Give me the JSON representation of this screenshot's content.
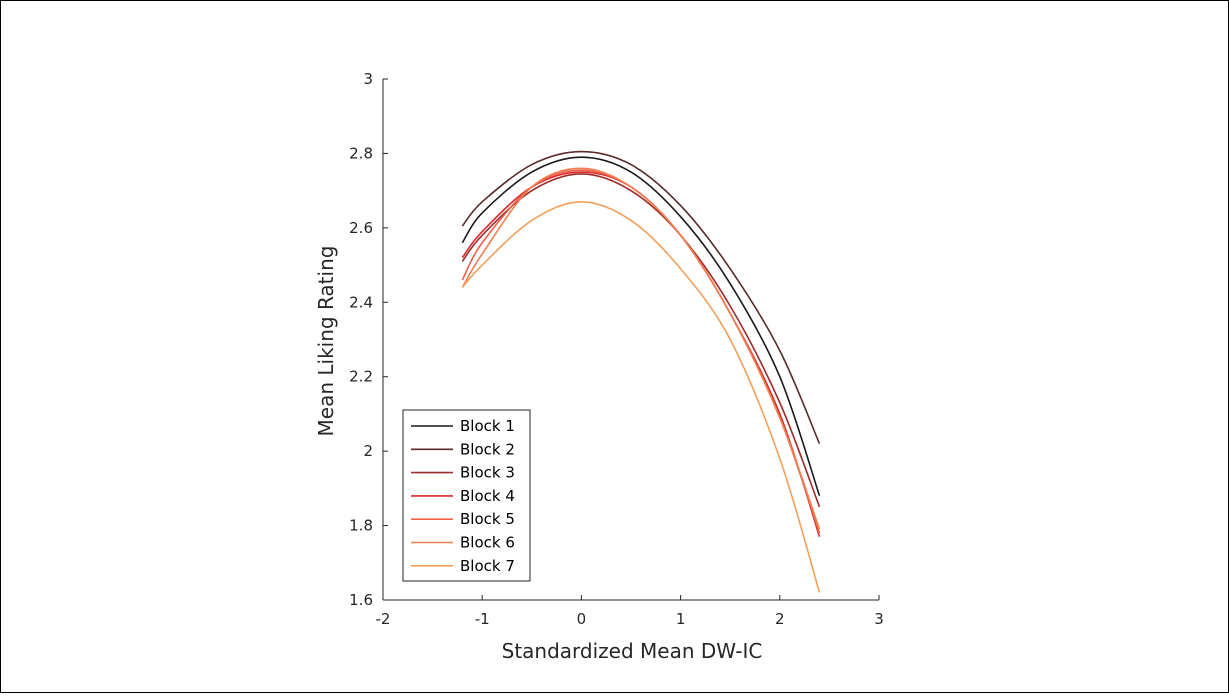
{
  "chart_data": {
    "type": "line",
    "xlabel": "Standardized Mean DW-IC",
    "ylabel": "Mean Liking Rating",
    "xlim": [
      -2,
      3
    ],
    "ylim": [
      1.6,
      3
    ],
    "xticks": [
      -2,
      -1,
      0,
      1,
      2,
      3
    ],
    "yticks": [
      1.6,
      1.8,
      2,
      2.2,
      2.4,
      2.6,
      2.8,
      3
    ],
    "xtick_labels": [
      "-2",
      "-1",
      "0",
      "1",
      "2",
      "3"
    ],
    "ytick_labels": [
      "1.6",
      "1.8",
      "2",
      "2.2",
      "2.4",
      "2.6",
      "2.8",
      "3"
    ],
    "grid": false,
    "legend_position": "bottom-left",
    "series": [
      {
        "name": "Block 1",
        "color": "#1a1a1a",
        "x": [
          -1.2,
          -1,
          -0.5,
          0,
          0.5,
          1,
          1.5,
          2,
          2.4
        ],
        "y": [
          2.56,
          2.64,
          2.75,
          2.79,
          2.75,
          2.63,
          2.45,
          2.2,
          1.88
        ]
      },
      {
        "name": "Block 2",
        "color": "#5a2a2a",
        "x": [
          -1.2,
          -1,
          -0.5,
          0,
          0.5,
          1,
          1.5,
          2,
          2.4
        ],
        "y": [
          2.605,
          2.67,
          2.77,
          2.805,
          2.77,
          2.66,
          2.49,
          2.27,
          2.02
        ]
      },
      {
        "name": "Block 3",
        "color": "#9e2a2a",
        "x": [
          -1.2,
          -1,
          -0.5,
          0,
          0.5,
          1,
          1.5,
          2,
          2.4
        ],
        "y": [
          2.51,
          2.58,
          2.7,
          2.745,
          2.7,
          2.58,
          2.39,
          2.13,
          1.85
        ]
      },
      {
        "name": "Block 4",
        "color": "#d92b2b",
        "x": [
          -1.2,
          -1,
          -0.5,
          0,
          0.5,
          1,
          1.5,
          2,
          2.4
        ],
        "y": [
          2.52,
          2.59,
          2.71,
          2.75,
          2.71,
          2.58,
          2.37,
          2.1,
          1.77
        ]
      },
      {
        "name": "Block 5",
        "color": "#f0604a",
        "x": [
          -1.2,
          -1,
          -0.5,
          0,
          0.5,
          1,
          1.5,
          2,
          2.4
        ],
        "y": [
          2.46,
          2.56,
          2.71,
          2.755,
          2.71,
          2.58,
          2.37,
          2.09,
          1.78
        ]
      },
      {
        "name": "Block 6",
        "color": "#f08050",
        "x": [
          -1.2,
          -1,
          -0.5,
          0,
          0.5,
          1,
          1.5,
          2,
          2.4
        ],
        "y": [
          2.44,
          2.53,
          2.71,
          2.76,
          2.71,
          2.58,
          2.37,
          2.09,
          1.79
        ]
      },
      {
        "name": "Block 7",
        "color": "#f5a05a",
        "x": [
          -1.2,
          -1,
          -0.5,
          0,
          0.5,
          1,
          1.5,
          2,
          2.4
        ],
        "y": [
          2.44,
          2.5,
          2.62,
          2.67,
          2.62,
          2.49,
          2.3,
          1.98,
          1.62
        ]
      }
    ]
  }
}
